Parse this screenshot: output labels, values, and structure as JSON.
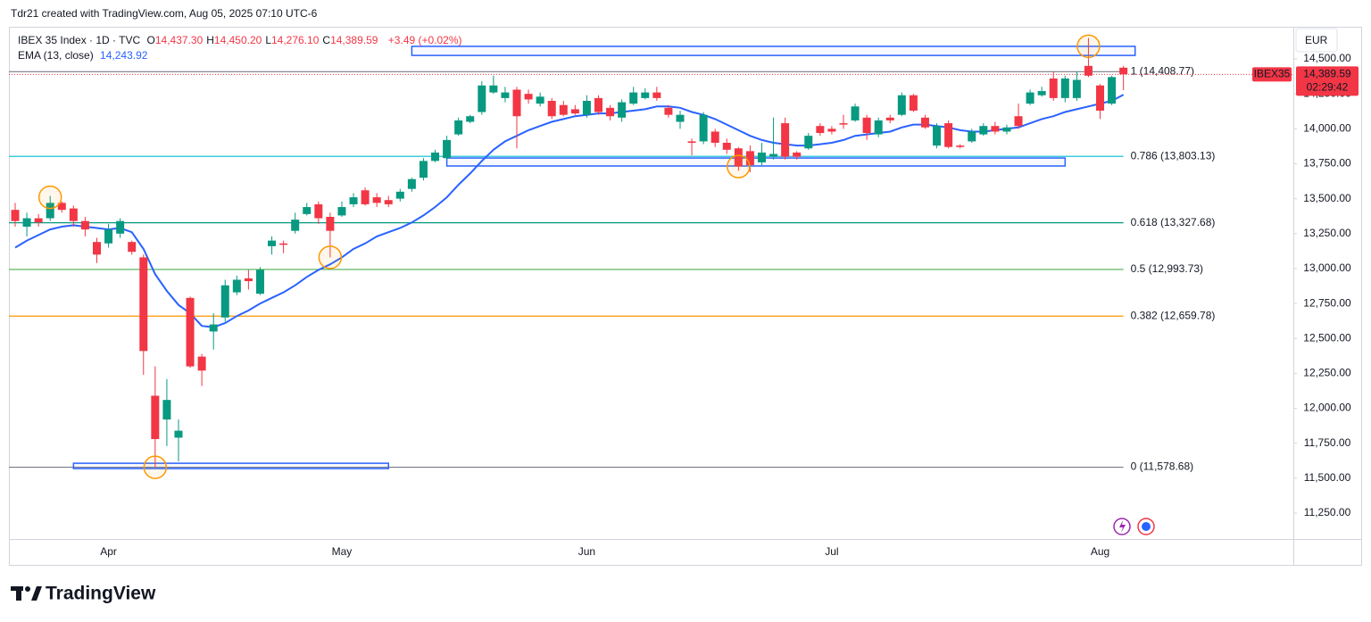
{
  "header": {
    "attribution": "Tdr21 created with TradingView.com, Aug 05, 2025 07:10 UTC-6"
  },
  "chart_data": {
    "type": "candlestick",
    "title": "IBEX 35 Index · 1D · TVC",
    "ohlc_legend": [
      {
        "key": "O",
        "value": "14,437.30"
      },
      {
        "key": "H",
        "value": "14,450.20"
      },
      {
        "key": "L",
        "value": "14,276.10"
      },
      {
        "key": "C",
        "value": "14,389.59"
      }
    ],
    "change": "+3.49 (+0.02%)",
    "indicator": {
      "name": "EMA (13, close)",
      "value": "14,243.92"
    },
    "currency": "EUR",
    "symbol_tag": "IBEX35",
    "last_price": {
      "value": 14389.59,
      "label": "14,389.59"
    },
    "countdown": "02:29:42",
    "categories": [
      null,
      null,
      null,
      null,
      null,
      null,
      null,
      null,
      "Apr",
      null,
      null,
      null,
      null,
      null,
      null,
      null,
      null,
      null,
      null,
      null,
      null,
      null,
      null,
      null,
      null,
      null,
      null,
      null,
      "May",
      null,
      null,
      null,
      null,
      null,
      null,
      null,
      null,
      null,
      null,
      null,
      null,
      null,
      null,
      null,
      null,
      null,
      null,
      null,
      null,
      "Jun",
      null,
      null,
      null,
      null,
      null,
      null,
      null,
      null,
      null,
      null,
      null,
      null,
      null,
      null,
      null,
      null,
      null,
      null,
      null,
      null,
      "Jul",
      null,
      null,
      null,
      null,
      null,
      null,
      null,
      null,
      null,
      null,
      null,
      null,
      null,
      null,
      null,
      null,
      null,
      null,
      null,
      null,
      null,
      null,
      "Aug",
      null,
      null
    ],
    "candles": {
      "up_color": "#089981",
      "down_color": "#f23645",
      "open": [
        13420,
        13300,
        13360,
        13360,
        13470,
        13430,
        13340,
        13190,
        13180,
        13250,
        13190,
        13080,
        12090,
        11920,
        11790,
        12790,
        12370,
        12550,
        12650,
        12830,
        12930,
        12820,
        13160,
        13180,
        13270,
        13390,
        13460,
        13370,
        13380,
        13460,
        13560,
        13510,
        13490,
        13500,
        13570,
        13650,
        13770,
        13790,
        13960,
        14050,
        14120,
        14260,
        14220,
        14280,
        14250,
        14180,
        14200,
        14170,
        14140,
        14100,
        14220,
        14150,
        14080,
        14180,
        14220,
        14260,
        14150,
        14050,
        13910,
        13910,
        13980,
        13900,
        13860,
        13840,
        13760,
        13800,
        14040,
        13830,
        13860,
        14020,
        14000,
        14040,
        14060,
        14080,
        13960,
        14080,
        14100,
        14240,
        14080,
        13880,
        14040,
        13880,
        13910,
        13960,
        14020,
        13980,
        14090,
        14180,
        14240,
        14360,
        14220,
        14220,
        14450,
        14310,
        14180,
        14437.3
      ],
      "high": [
        13470,
        13400,
        13390,
        13520,
        13480,
        13450,
        13370,
        13220,
        13320,
        13360,
        13200,
        13100,
        12300,
        12210,
        11920,
        12800,
        12390,
        12680,
        12920,
        12950,
        12990,
        13010,
        13230,
        13200,
        13400,
        13470,
        13480,
        13400,
        13480,
        13540,
        13580,
        13540,
        13520,
        13570,
        13650,
        13790,
        13850,
        13950,
        14080,
        14100,
        14340,
        14380,
        14300,
        14300,
        14280,
        14260,
        14220,
        14200,
        14170,
        14240,
        14240,
        14170,
        14210,
        14300,
        14290,
        14300,
        14170,
        14130,
        13930,
        14120,
        14000,
        13930,
        13870,
        13880,
        13900,
        14080,
        14080,
        13840,
        13970,
        14040,
        14020,
        14100,
        14180,
        14100,
        14080,
        14100,
        14260,
        14250,
        14100,
        14040,
        14060,
        13890,
        14000,
        14040,
        14050,
        14030,
        14180,
        14280,
        14300,
        14410,
        14380,
        14410,
        14650,
        14320,
        14380,
        14450.2
      ],
      "low": [
        13300,
        13230,
        13300,
        13340,
        13400,
        13300,
        13230,
        13040,
        13150,
        13220,
        13100,
        12240,
        11580,
        11730,
        11620,
        12290,
        12160,
        12420,
        12620,
        12810,
        12850,
        12810,
        13100,
        13110,
        13250,
        13380,
        13320,
        13080,
        13370,
        13440,
        13450,
        13440,
        13440,
        13480,
        13550,
        13630,
        13760,
        13780,
        13950,
        14040,
        14100,
        14250,
        14190,
        13860,
        14180,
        14160,
        14070,
        14090,
        14100,
        14080,
        14100,
        14060,
        14050,
        14170,
        14210,
        14200,
        14080,
        14000,
        13810,
        13890,
        13870,
        13820,
        13700,
        13690,
        13740,
        13780,
        13780,
        13780,
        13850,
        13950,
        13960,
        14000,
        14050,
        13920,
        13940,
        14040,
        14090,
        14120,
        14000,
        13860,
        13860,
        13860,
        13900,
        13950,
        13960,
        13960,
        14000,
        14170,
        14230,
        14200,
        14190,
        14200,
        14370,
        14070,
        14170,
        14276.1
      ],
      "close": [
        13340,
        13360,
        13330,
        13470,
        13420,
        13340,
        13280,
        13100,
        13280,
        13340,
        13120,
        12410,
        11780,
        12060,
        11840,
        12300,
        12270,
        12600,
        12880,
        12920,
        12910,
        12990,
        13200,
        13170,
        13350,
        13440,
        13360,
        13270,
        13440,
        13510,
        13460,
        13470,
        13460,
        13550,
        13640,
        13770,
        13830,
        13920,
        14060,
        14090,
        14310,
        14310,
        14260,
        14090,
        14210,
        14230,
        14090,
        14100,
        14110,
        14200,
        14120,
        14090,
        14190,
        14260,
        14260,
        14220,
        14100,
        14100,
        13900,
        14100,
        13900,
        13850,
        13730,
        13740,
        13830,
        13820,
        13800,
        13800,
        13950,
        13970,
        13980,
        14030,
        14160,
        13970,
        14060,
        14060,
        14240,
        14130,
        14010,
        14020,
        13870,
        13870,
        13980,
        14020,
        13980,
        14010,
        14020,
        14260,
        14270,
        14220,
        14360,
        14350,
        14380,
        14130,
        14370,
        14389.59
      ]
    },
    "ema": {
      "color": "#2962ff",
      "values": [
        13150,
        13200,
        13240,
        13280,
        13300,
        13310,
        13300,
        13290,
        13280,
        13290,
        13260,
        13140,
        12960,
        12840,
        12740,
        12680,
        12590,
        12580,
        12610,
        12660,
        12700,
        12750,
        12790,
        12830,
        12880,
        12940,
        12990,
        13030,
        13080,
        13140,
        13180,
        13230,
        13260,
        13290,
        13330,
        13380,
        13440,
        13510,
        13600,
        13680,
        13770,
        13850,
        13910,
        13950,
        13990,
        14020,
        14050,
        14070,
        14090,
        14100,
        14110,
        14110,
        14120,
        14130,
        14140,
        14160,
        14160,
        14150,
        14120,
        14100,
        14070,
        14030,
        13990,
        13950,
        13920,
        13900,
        13890,
        13880,
        13880,
        13890,
        13900,
        13920,
        13950,
        13960,
        13970,
        13980,
        14010,
        14030,
        14030,
        14020,
        14010,
        13990,
        13980,
        13980,
        13990,
        14000,
        14010,
        14040,
        14070,
        14090,
        14120,
        14140,
        14160,
        14180,
        14200,
        14243.92
      ]
    },
    "fib_levels": [
      {
        "value": 14408.77,
        "label": "1 (14,408.77)",
        "color": "#787b86"
      },
      {
        "value": 13803.13,
        "label": "0.786 (13,803.13)",
        "color": "#00bcd4"
      },
      {
        "value": 13327.68,
        "label": "0.618 (13,327.68)",
        "color": "#089981"
      },
      {
        "value": 12993.73,
        "label": "0.5 (12,993.73)",
        "color": "#4caf50"
      },
      {
        "value": 12659.78,
        "label": "0.382 (12,659.78)",
        "color": "#ff9800"
      },
      {
        "value": 11578.68,
        "label": "0 (11,578.68)",
        "color": "#787b86"
      }
    ],
    "zones": [
      {
        "start": 34,
        "end": 96,
        "low": 14525,
        "high": 14590
      },
      {
        "start": 37,
        "end": 90,
        "low": 13734,
        "high": 13791
      },
      {
        "start": 5,
        "end": 32,
        "low": 11569,
        "high": 11607
      }
    ],
    "zone_color": "#2962ff",
    "circles": [
      {
        "index": 3,
        "value": 13510
      },
      {
        "index": 12,
        "value": 11578
      },
      {
        "index": 27,
        "value": 13080
      },
      {
        "index": 62,
        "value": 13730
      },
      {
        "index": 92,
        "value": 14590
      }
    ],
    "circle_color": "#ff9800",
    "ylim": [
      11065,
      14730
    ],
    "yticks": [
      {
        "value": 11250,
        "label": "11,250.00"
      },
      {
        "value": 11500,
        "label": "11,500.00"
      },
      {
        "value": 11750,
        "label": "11,750.00"
      },
      {
        "value": 12000,
        "label": "12,000.00"
      },
      {
        "value": 12250,
        "label": "12,250.00"
      },
      {
        "value": 12500,
        "label": "12,500.00"
      },
      {
        "value": 12750,
        "label": "12,750.00"
      },
      {
        "value": 13000,
        "label": "13,000.00"
      },
      {
        "value": 13250,
        "label": "13,250.00"
      },
      {
        "value": 13500,
        "label": "13,500.00"
      },
      {
        "value": 13750,
        "label": "13,750.00"
      },
      {
        "value": 14000,
        "label": "14,000.00"
      },
      {
        "value": 14250,
        "label": "14,250.00"
      },
      {
        "value": 14500,
        "label": "14,500.00"
      }
    ],
    "grid": false
  },
  "footer": {
    "brand": "TradingView"
  }
}
